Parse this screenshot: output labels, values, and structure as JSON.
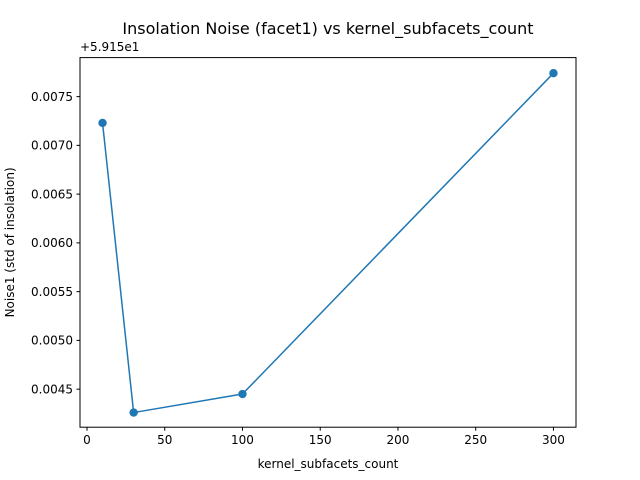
{
  "chart_data": {
    "type": "line",
    "title": "Insolation Noise (facet1) vs kernel_subfacets_count",
    "xlabel": "kernel_subfacets_count",
    "ylabel": "Noise1 (std of insolation)",
    "y_offset_label": "+5.915e1",
    "x_ticks": [
      0,
      50,
      100,
      150,
      200,
      250,
      300
    ],
    "x_tick_labels": [
      "0",
      "50",
      "100",
      "150",
      "200",
      "250",
      "300"
    ],
    "y_ticks": [
      0.0045,
      0.005,
      0.0055,
      0.006,
      0.0065,
      0.007,
      0.0075
    ],
    "y_tick_labels": [
      "0.0045",
      "0.0050",
      "0.0055",
      "0.0060",
      "0.0065",
      "0.0070",
      "0.0075"
    ],
    "xlim": [
      -4.5,
      314.5
    ],
    "ylim": [
      0.00411,
      0.0079
    ],
    "grid": false,
    "series": [
      {
        "color": "#1f77b4",
        "marker": "circle",
        "x": [
          10,
          30,
          100,
          300
        ],
        "y": [
          0.00723,
          0.00426,
          0.00445,
          0.00774
        ]
      }
    ]
  }
}
